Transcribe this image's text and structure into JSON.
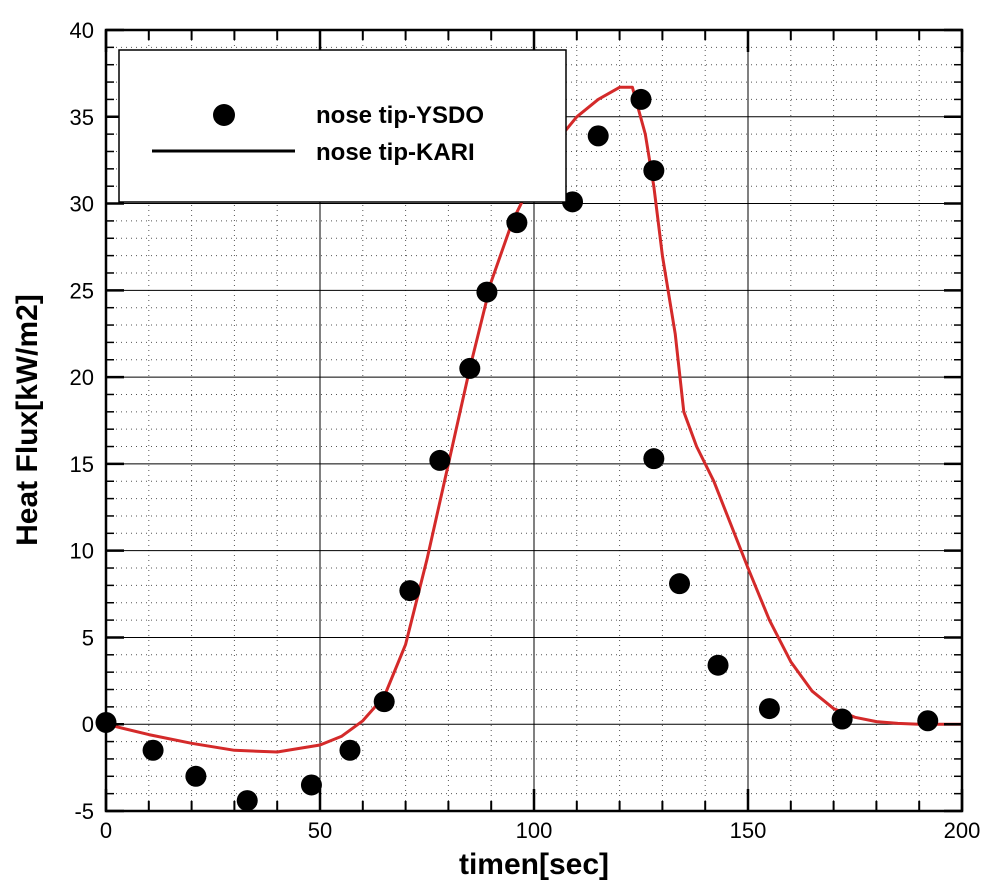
{
  "chart_data": {
    "type": "scatter",
    "xlabel": "timen[sec]",
    "ylabel": "Heat Flux[kW/m2]",
    "xlim": [
      0,
      200
    ],
    "ylim": [
      -5,
      40
    ],
    "x_ticks": [
      "0",
      "50",
      "100",
      "150",
      "200"
    ],
    "y_ticks": [
      "-5",
      "0",
      "5",
      "10",
      "15",
      "20",
      "25",
      "30",
      "35",
      "40"
    ],
    "grid": true,
    "legend_position": "top-left",
    "colors": {
      "scatter": "#000000",
      "line": "#d42a2a",
      "frame": "#000000"
    },
    "series": [
      {
        "name": "nose tip-YSDO",
        "type": "scatter",
        "x": [
          0,
          11,
          21,
          33,
          48,
          57,
          65,
          71,
          78,
          85,
          89,
          96,
          109,
          115,
          125,
          128,
          128,
          134,
          143,
          155,
          172,
          192
        ],
        "y": [
          0.1,
          -1.5,
          -3.0,
          -4.4,
          -3.5,
          -1.5,
          1.3,
          7.7,
          15.2,
          20.5,
          24.9,
          28.9,
          30.1,
          33.9,
          36.0,
          31.9,
          15.3,
          8.1,
          3.4,
          0.9,
          0.3,
          0.2
        ]
      },
      {
        "name": "nose tip-KARI",
        "type": "line",
        "x": [
          0,
          10,
          20,
          30,
          40,
          50,
          55,
          60,
          65,
          70,
          75,
          80,
          85,
          90,
          95,
          100,
          105,
          110,
          115,
          120,
          123,
          126,
          128,
          130,
          133,
          135,
          138,
          142,
          146,
          150,
          155,
          160,
          165,
          170,
          175,
          180,
          185,
          190,
          200
        ],
        "y": [
          0,
          -0.6,
          -1.1,
          -1.5,
          -1.6,
          -1.2,
          -0.7,
          0.2,
          1.6,
          4.6,
          9.5,
          15.0,
          20.5,
          25.5,
          29.0,
          31.5,
          33.5,
          35.0,
          36.0,
          36.7,
          36.7,
          34.0,
          31.0,
          27.0,
          22.5,
          18.0,
          16.0,
          14.0,
          11.5,
          9.0,
          6.0,
          3.6,
          1.9,
          0.9,
          0.4,
          0.15,
          0.05,
          0.0,
          0.0
        ]
      }
    ]
  }
}
